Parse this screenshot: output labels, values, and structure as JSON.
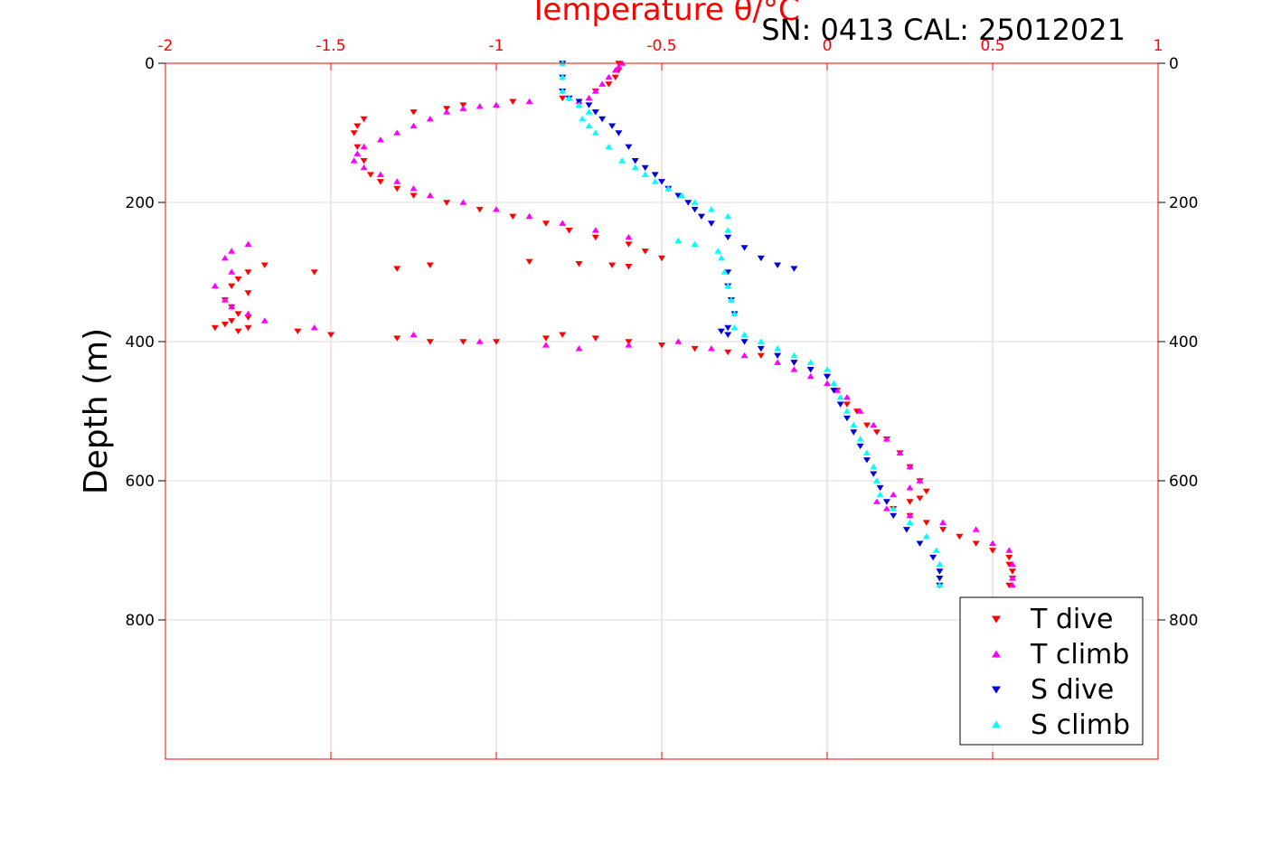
{
  "chart_data": {
    "type": "scatter",
    "title": "Temperature θ/°C",
    "subtitle": "SN: 0413  CAL: 25012021",
    "xlabel": "Temperature θ/°C",
    "ylabel": "Depth (m)",
    "xlim": [
      -2,
      1
    ],
    "ylim": [
      0,
      1000
    ],
    "y_reversed": true,
    "grid": true,
    "legend_position": "bottom-right",
    "x_ticks": [
      "-2",
      "-1.5",
      "-1",
      "-0.5",
      "0",
      "0.5",
      "1"
    ],
    "y_ticks": [
      "0",
      "200",
      "400",
      "600",
      "800"
    ],
    "colors": {
      "T dive": "#ff0000",
      "T climb": "#ff00ff",
      "S dive": "#0000dd",
      "S climb": "#00ffff",
      "axes": "#ff0000",
      "grid": "#f2c6c6"
    },
    "series": [
      {
        "name": "T dive",
        "marker": "triangle-down",
        "x": [
          -0.63,
          -0.63,
          -0.64,
          -0.66,
          -0.7,
          -0.8,
          -0.95,
          -1.1,
          -1.15,
          -1.25,
          -1.4,
          -1.42,
          -1.43,
          -1.42,
          -1.4,
          -1.38,
          -1.35,
          -1.3,
          -1.25,
          -1.15,
          -1.05,
          -0.95,
          -0.85,
          -0.78,
          -0.7,
          -0.6,
          -0.55,
          -0.5,
          -1.7,
          -1.75,
          -1.78,
          -1.8,
          -1.75,
          -1.55,
          -1.3,
          -1.2,
          -0.9,
          -0.75,
          -0.65,
          -0.6,
          -1.82,
          -1.8,
          -1.78,
          -1.75,
          -1.8,
          -1.82,
          -1.85,
          -1.78,
          -1.75,
          -1.6,
          -1.5,
          -1.3,
          -1.2,
          -1.1,
          -1.0,
          -0.85,
          -0.8,
          -0.7,
          -0.6,
          -0.5,
          -0.4,
          -0.3,
          -0.2,
          -0.1,
          -0.05,
          0.0,
          0.03,
          0.06,
          0.09,
          0.12,
          0.15,
          0.18,
          0.22,
          0.25,
          0.28,
          0.3,
          0.28,
          0.25,
          0.2,
          0.25,
          0.3,
          0.35,
          0.4,
          0.45,
          0.5,
          0.55,
          0.55,
          0.56,
          0.56,
          0.55
        ],
        "y": [
          0,
          10,
          20,
          30,
          40,
          50,
          55,
          60,
          65,
          70,
          80,
          90,
          100,
          120,
          140,
          160,
          170,
          180,
          190,
          200,
          210,
          220,
          230,
          240,
          250,
          260,
          270,
          280,
          290,
          300,
          310,
          320,
          330,
          300,
          295,
          290,
          285,
          288,
          290,
          292,
          340,
          350,
          360,
          365,
          370,
          375,
          380,
          385,
          380,
          385,
          390,
          395,
          400,
          400,
          400,
          395,
          390,
          395,
          400,
          405,
          410,
          415,
          420,
          430,
          440,
          450,
          470,
          490,
          500,
          520,
          530,
          540,
          560,
          580,
          600,
          615,
          625,
          630,
          640,
          650,
          660,
          670,
          680,
          690,
          700,
          710,
          720,
          730,
          740,
          750
        ]
      },
      {
        "name": "T climb",
        "marker": "triangle-up",
        "x": [
          -0.62,
          -0.63,
          -0.64,
          -0.66,
          -0.68,
          -0.7,
          -0.72,
          -0.75,
          -0.9,
          -1.0,
          -1.05,
          -1.1,
          -1.15,
          -1.2,
          -1.25,
          -1.3,
          -1.35,
          -1.4,
          -1.42,
          -1.43,
          -1.4,
          -1.35,
          -1.3,
          -1.25,
          -1.2,
          -1.1,
          -1.0,
          -0.9,
          -0.8,
          -0.7,
          -0.6,
          -1.75,
          -1.8,
          -1.82,
          -1.8,
          -1.85,
          -1.82,
          -1.8,
          -1.75,
          -1.7,
          -1.55,
          -1.25,
          -1.05,
          -0.85,
          -0.75,
          -0.6,
          -0.45,
          -0.35,
          -0.25,
          -0.15,
          -0.1,
          -0.05,
          0.0,
          0.03,
          0.06,
          0.1,
          0.14,
          0.18,
          0.22,
          0.25,
          0.28,
          0.25,
          0.2,
          0.15,
          0.18,
          0.25,
          0.35,
          0.45,
          0.5,
          0.55,
          0.56,
          0.56,
          0.56
        ],
        "y": [
          0,
          5,
          10,
          20,
          30,
          40,
          50,
          55,
          55,
          60,
          62,
          65,
          70,
          80,
          90,
          100,
          110,
          120,
          130,
          140,
          150,
          160,
          170,
          180,
          190,
          200,
          210,
          220,
          230,
          240,
          250,
          260,
          270,
          280,
          300,
          320,
          340,
          350,
          360,
          370,
          380,
          390,
          400,
          405,
          410,
          405,
          400,
          410,
          420,
          430,
          440,
          450,
          460,
          470,
          480,
          500,
          520,
          540,
          560,
          580,
          600,
          610,
          620,
          630,
          640,
          650,
          660,
          670,
          690,
          700,
          720,
          740,
          750
        ]
      },
      {
        "name": "S dive",
        "marker": "triangle-down",
        "x": [
          -0.8,
          -0.8,
          -0.8,
          -0.78,
          -0.75,
          -0.72,
          -0.7,
          -0.68,
          -0.65,
          -0.63,
          -0.6,
          -0.58,
          -0.55,
          -0.52,
          -0.5,
          -0.48,
          -0.45,
          -0.42,
          -0.4,
          -0.38,
          -0.35,
          -0.3,
          -0.25,
          -0.2,
          -0.15,
          -0.1,
          -0.3,
          -0.3,
          -0.29,
          -0.28,
          -0.3,
          -0.32,
          -0.3,
          -0.25,
          -0.2,
          -0.15,
          -0.1,
          -0.05,
          0.0,
          0.02,
          0.04,
          0.06,
          0.08,
          0.1,
          0.12,
          0.14,
          0.16,
          0.18,
          0.2,
          0.24,
          0.28,
          0.32,
          0.34,
          0.34,
          0.34
        ],
        "y": [
          0,
          20,
          40,
          50,
          55,
          60,
          70,
          80,
          90,
          100,
          120,
          140,
          150,
          160,
          170,
          180,
          190,
          200,
          210,
          220,
          230,
          250,
          265,
          280,
          290,
          295,
          300,
          320,
          340,
          360,
          380,
          385,
          390,
          400,
          410,
          420,
          430,
          440,
          450,
          470,
          490,
          510,
          530,
          550,
          570,
          590,
          610,
          630,
          650,
          670,
          690,
          710,
          730,
          740,
          750
        ]
      },
      {
        "name": "S climb",
        "marker": "triangle-up",
        "x": [
          -0.8,
          -0.8,
          -0.8,
          -0.78,
          -0.75,
          -0.72,
          -0.74,
          -0.72,
          -0.7,
          -0.66,
          -0.62,
          -0.58,
          -0.55,
          -0.52,
          -0.48,
          -0.44,
          -0.4,
          -0.35,
          -0.3,
          -0.3,
          -0.45,
          -0.4,
          -0.33,
          -0.32,
          -0.31,
          -0.3,
          -0.29,
          -0.28,
          -0.28,
          -0.25,
          -0.2,
          -0.15,
          -0.1,
          -0.05,
          0.0,
          0.02,
          0.04,
          0.06,
          0.08,
          0.1,
          0.12,
          0.14,
          0.15,
          0.16,
          0.2,
          0.25,
          0.3,
          0.33,
          0.34,
          0.34
        ],
        "y": [
          0,
          20,
          40,
          50,
          60,
          70,
          80,
          90,
          100,
          120,
          140,
          150,
          160,
          170,
          180,
          190,
          200,
          210,
          220,
          240,
          255,
          260,
          270,
          280,
          300,
          320,
          340,
          360,
          380,
          390,
          400,
          410,
          420,
          430,
          440,
          460,
          480,
          500,
          520,
          540,
          560,
          580,
          600,
          620,
          640,
          660,
          680,
          700,
          720,
          750
        ]
      }
    ]
  }
}
